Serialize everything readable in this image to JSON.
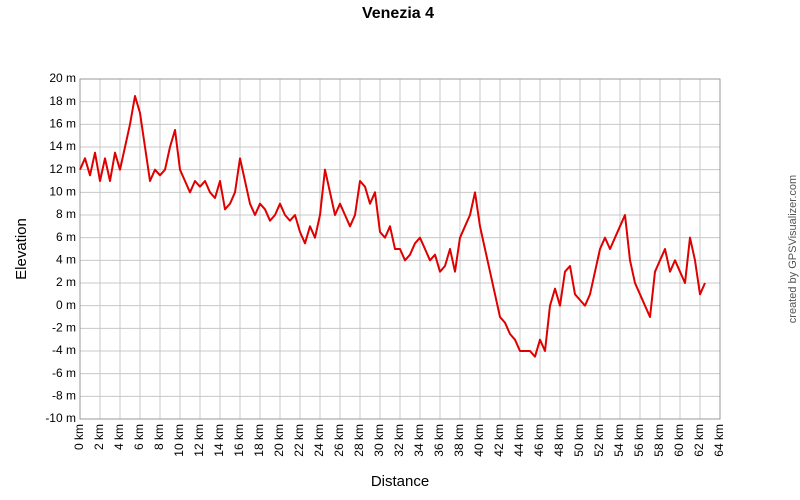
{
  "chart_data": {
    "type": "line",
    "title": "Venezia 4",
    "xlabel": "Distance",
    "ylabel": "Elevation",
    "credit": "created by GPSVisualizer.com",
    "x": [
      0,
      0.5,
      1,
      1.5,
      2,
      2.5,
      3,
      3.5,
      4,
      4.5,
      5,
      5.5,
      6,
      6.5,
      7,
      7.5,
      8,
      8.5,
      9,
      9.5,
      10,
      10.5,
      11,
      11.5,
      12,
      12.5,
      13,
      13.5,
      14,
      14.5,
      15,
      15.5,
      16,
      16.5,
      17,
      17.5,
      18,
      18.5,
      19,
      19.5,
      20,
      20.5,
      21,
      21.5,
      22,
      22.5,
      23,
      23.5,
      24,
      24.5,
      25,
      25.5,
      26,
      26.5,
      27,
      27.5,
      28,
      28.5,
      29,
      29.5,
      30,
      30.5,
      31,
      31.5,
      32,
      32.5,
      33,
      33.5,
      34,
      34.5,
      35,
      35.5,
      36,
      36.5,
      37,
      37.5,
      38,
      38.5,
      39,
      39.5,
      40,
      40.5,
      41,
      41.5,
      42,
      42.5,
      43,
      43.5,
      44,
      44.5,
      45,
      45.5,
      46,
      46.5,
      47,
      47.5,
      48,
      48.5,
      49,
      49.5,
      50,
      50.5,
      51,
      51.5,
      52,
      52.5,
      53,
      53.5,
      54,
      54.5,
      55,
      55.5,
      56,
      56.5,
      57,
      57.5,
      58,
      58.5,
      59,
      59.5,
      60,
      60.5,
      61,
      61.5,
      62,
      62.5
    ],
    "series": [
      {
        "color": "#e00000",
        "values": [
          12,
          13,
          11.5,
          13.5,
          11,
          13,
          11,
          13.5,
          12,
          14,
          16,
          18.5,
          17,
          14,
          11,
          12,
          11.5,
          12,
          14,
          15.5,
          12,
          11,
          10,
          11,
          10.5,
          11,
          10,
          9.5,
          11,
          8.5,
          9,
          10,
          13,
          11,
          9,
          8,
          9,
          8.5,
          7.5,
          8,
          9,
          8,
          7.5,
          8,
          6.5,
          5.5,
          7,
          6,
          8,
          12,
          10,
          8,
          9,
          8,
          7,
          8,
          11,
          10.5,
          9,
          10,
          6.5,
          6,
          7,
          5,
          5,
          4,
          4.5,
          5.5,
          6,
          5,
          4,
          4.5,
          3,
          3.5,
          5,
          3,
          6,
          7,
          8,
          10,
          7,
          5,
          3,
          1,
          -1,
          -1.5,
          -2.5,
          -3,
          -4,
          -4,
          -4,
          -4.5,
          -3,
          -4,
          0,
          1.5,
          0,
          3,
          3.5,
          1,
          0.5,
          0,
          1,
          3,
          5,
          6,
          5,
          6,
          7,
          8,
          4,
          2,
          1,
          0,
          -1,
          3,
          4,
          5,
          3,
          4,
          3,
          2,
          6,
          4,
          1,
          2
        ]
      }
    ],
    "xlim": [
      0,
      64
    ],
    "xticks": [
      {
        "value": 0,
        "label": "0 km"
      },
      {
        "value": 2,
        "label": "2 km"
      },
      {
        "value": 4,
        "label": "4 km"
      },
      {
        "value": 6,
        "label": "6 km"
      },
      {
        "value": 8,
        "label": "8 km"
      },
      {
        "value": 10,
        "label": "10 km"
      },
      {
        "value": 12,
        "label": "12 km"
      },
      {
        "value": 14,
        "label": "14 km"
      },
      {
        "value": 16,
        "label": "16 km"
      },
      {
        "value": 18,
        "label": "18 km"
      },
      {
        "value": 20,
        "label": "20 km"
      },
      {
        "value": 22,
        "label": "22 km"
      },
      {
        "value": 24,
        "label": "24 km"
      },
      {
        "value": 26,
        "label": "26 km"
      },
      {
        "value": 28,
        "label": "28 km"
      },
      {
        "value": 30,
        "label": "30 km"
      },
      {
        "value": 32,
        "label": "32 km"
      },
      {
        "value": 34,
        "label": "34 km"
      },
      {
        "value": 36,
        "label": "36 km"
      },
      {
        "value": 38,
        "label": "38 km"
      },
      {
        "value": 40,
        "label": "40 km"
      },
      {
        "value": 42,
        "label": "42 km"
      },
      {
        "value": 44,
        "label": "44 km"
      },
      {
        "value": 46,
        "label": "46 km"
      },
      {
        "value": 48,
        "label": "48 km"
      },
      {
        "value": 50,
        "label": "50 km"
      },
      {
        "value": 52,
        "label": "52 km"
      },
      {
        "value": 54,
        "label": "54 km"
      },
      {
        "value": 56,
        "label": "56 km"
      },
      {
        "value": 58,
        "label": "58 km"
      },
      {
        "value": 60,
        "label": "60 km"
      },
      {
        "value": 62,
        "label": "62 km"
      },
      {
        "value": 64,
        "label": "64 km"
      }
    ],
    "ylim": [
      -10,
      20
    ],
    "yticks": [
      {
        "value": -10,
        "label": "-10 m"
      },
      {
        "value": -8,
        "label": "-8 m"
      },
      {
        "value": -6,
        "label": "-6 m"
      },
      {
        "value": -4,
        "label": "-4 m"
      },
      {
        "value": -2,
        "label": "-2 m"
      },
      {
        "value": 0,
        "label": "0 m"
      },
      {
        "value": 2,
        "label": "2 m"
      },
      {
        "value": 4,
        "label": "4 m"
      },
      {
        "value": 6,
        "label": "6 m"
      },
      {
        "value": 8,
        "label": "8 m"
      },
      {
        "value": 10,
        "label": "10 m"
      },
      {
        "value": 12,
        "label": "12 m"
      },
      {
        "value": 14,
        "label": "14 m"
      },
      {
        "value": 16,
        "label": "16 m"
      },
      {
        "value": 18,
        "label": "18 m"
      },
      {
        "value": 20,
        "label": "20 m"
      }
    ],
    "grid": true
  }
}
